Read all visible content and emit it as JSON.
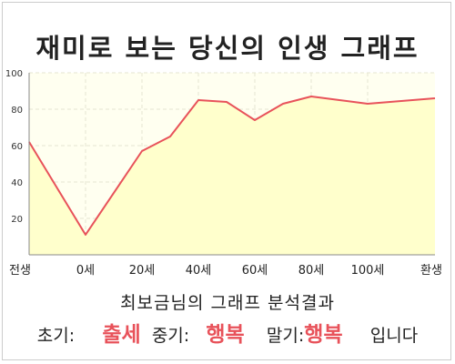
{
  "header": {
    "title": "재미로 보는 당신의 인생 그래프"
  },
  "chart_data": {
    "type": "area",
    "title": "재미로 보는 당신의 인생 그래프",
    "xlabel": "",
    "ylabel": "",
    "ylim": [
      0,
      100
    ],
    "yticks": [
      20,
      40,
      60,
      80,
      100
    ],
    "xticks": [
      "전생",
      "0세",
      "20세",
      "40세",
      "60세",
      "80세",
      "100세",
      "환생"
    ],
    "grid": true,
    "legend": "none",
    "line_color": "#e8525a",
    "fill_color": "#ffffcc",
    "plot_background": "#fffff0",
    "points": [
      {
        "x": "전생",
        "y": 62
      },
      {
        "x": "0세",
        "y": 11
      },
      {
        "x": "20세",
        "y": 57
      },
      {
        "x": "30세",
        "y": 65
      },
      {
        "x": "40세",
        "y": 85
      },
      {
        "x": "50세",
        "y": 84
      },
      {
        "x": "60세",
        "y": 74
      },
      {
        "x": "70세",
        "y": 83
      },
      {
        "x": "80세",
        "y": 87
      },
      {
        "x": "90세",
        "y": 85
      },
      {
        "x": "100세",
        "y": 83
      },
      {
        "x": "환생",
        "y": 86
      }
    ]
  },
  "result": {
    "heading": "최보금님의 그래프 분석결과",
    "early_label": "초기:",
    "early_value": "출세",
    "middle_label": "중기:",
    "middle_value": "행복",
    "late_label": "말기:",
    "late_value": "행복",
    "ending": "입니다"
  }
}
